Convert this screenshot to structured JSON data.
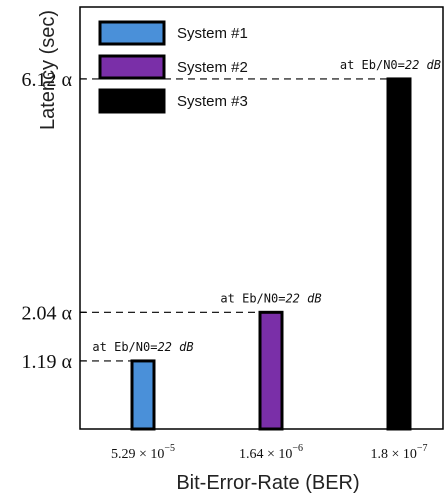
{
  "chart_data": {
    "type": "bar",
    "xlabel": "Bit-Error-Rate (BER)",
    "ylabel": "Latency (sec)",
    "categories": [
      {
        "base": "5.29",
        "exp": "−5"
      },
      {
        "base": "1.64",
        "exp": "−6"
      },
      {
        "base": "1.8",
        "exp": "−7"
      }
    ],
    "values": [
      1.19,
      2.04,
      6.12
    ],
    "ytick_labels": [
      "1.19 α",
      "2.04 α",
      "6.12 α"
    ],
    "ylim": [
      0,
      7.5
    ],
    "grid": false,
    "legend_position": "top-left",
    "series": [
      {
        "name": "System #1",
        "color": "#4a90d9"
      },
      {
        "name": "System #2",
        "color": "#7a2fa8"
      },
      {
        "name": "System #3",
        "color": "#000000"
      }
    ],
    "annotations": [
      {
        "prefix": "at  Eb/N0=",
        "value": "22 dB"
      },
      {
        "prefix": "at  Eb/N0=",
        "value": "22 dB"
      },
      {
        "prefix": "at  Eb/N0=",
        "value": "22 dB"
      }
    ],
    "times_symbol": "×",
    "exp_base": "10"
  }
}
